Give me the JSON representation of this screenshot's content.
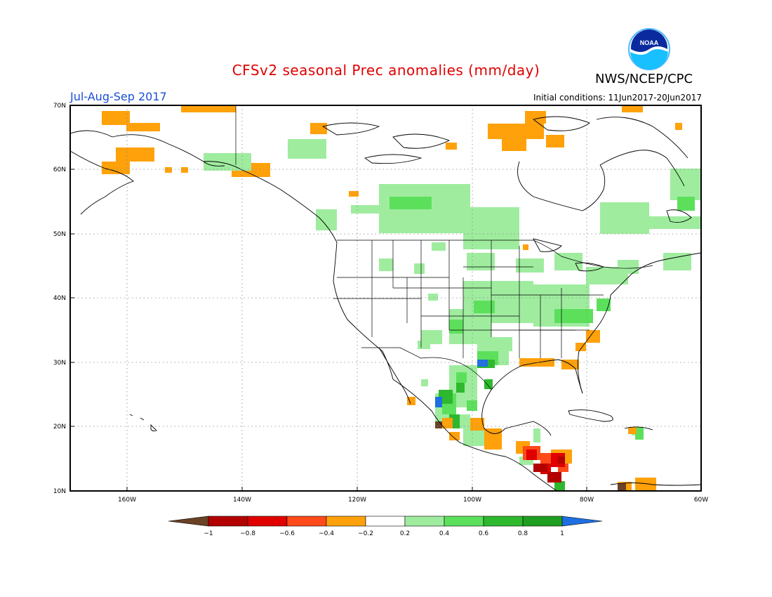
{
  "title": "CFSv2 seasonal Prec anomalies (mm/day)",
  "season": "Jul-Aug-Sep 2017",
  "initial_conditions": "Initial conditions: 11Jun2017-20Jun2017",
  "agency": "NWS/NCEP/CPC",
  "logo_text": "NOAA",
  "axes": {
    "lat_labels": [
      "70N",
      "60N",
      "50N",
      "40N",
      "30N",
      "20N",
      "10N"
    ],
    "lon_labels": [
      "160W",
      "140W",
      "120W",
      "100W",
      "80W",
      "60W"
    ]
  },
  "colors": {
    "lt_-1": "#6b4226",
    "-1_-0.8": "#b30000",
    "-0.8_-0.6": "#e00000",
    "-0.6_-0.4": "#ff4a1a",
    "-0.4_-0.2": "#ffa10a",
    "-0.2_0.2": "#ffffff",
    "0.2_0.4": "#9fec9f",
    "0.4_0.6": "#5ce05c",
    "0.6_0.8": "#2eb82e",
    "0.8_1": "#1f9e1f",
    "gt_1": "#1e6fe0"
  },
  "colorbar": {
    "labels": [
      "−1",
      "−0.8",
      "−0.6",
      "−0.4",
      "−0.2",
      "0.2",
      "0.4",
      "0.6",
      "0.8",
      "1"
    ]
  }
}
